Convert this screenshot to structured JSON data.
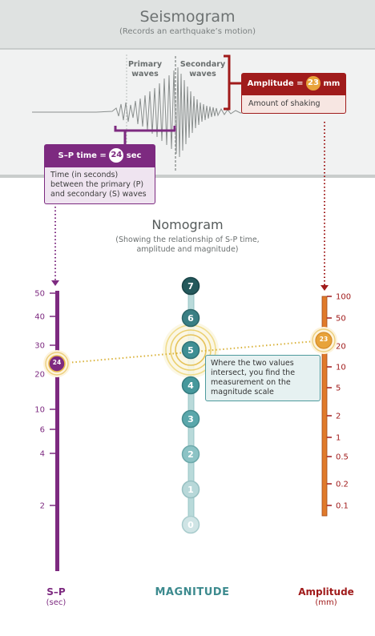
{
  "seismogram": {
    "title": "Seismogram",
    "subtitle": "(Records an earthquake’s motion)",
    "primary_label": [
      "Primary",
      "waves"
    ],
    "secondary_label": [
      "Secondary",
      "waves"
    ],
    "sp_box": {
      "label": "S–P time =",
      "value": "24",
      "unit": "sec",
      "body": [
        "Time (in seconds)",
        "between the primary (P)",
        "and secondary (S) waves"
      ]
    },
    "amp_box": {
      "label": "Amplitude =",
      "value": "23",
      "unit": "mm",
      "body": "Amount of shaking"
    }
  },
  "nomogram": {
    "title": "Nomogram",
    "subtitle": [
      "(Showing the relationship of S-P time,",
      "amplitude and magnitude)"
    ],
    "sp_ticks": [
      "50",
      "40",
      "30",
      "20",
      "10",
      "6",
      "4",
      "2"
    ],
    "amp_ticks": [
      "100",
      "50",
      "20",
      "10",
      "5",
      "2",
      "1",
      "0.5",
      "0.2",
      "0.1"
    ],
    "magnitudes": [
      "7",
      "6",
      "5",
      "4",
      "3",
      "2",
      "1",
      "0"
    ],
    "sp_value": "24",
    "amp_value": "23",
    "callout": [
      "Where the two values",
      "intersect, you find the",
      "measurement on the",
      "magnitude scale"
    ],
    "sp_label": "S–P",
    "sp_unit": "(sec)",
    "mag_label": "MAGNITUDE",
    "amp_label": "Amplitude",
    "amp_unit": "(mm)"
  },
  "colors": {
    "purple": "#7d2a80",
    "red": "#a01b1b",
    "teal": "#3c8a8e",
    "orange": "#e07a2a",
    "gold": "#e6b84a"
  }
}
